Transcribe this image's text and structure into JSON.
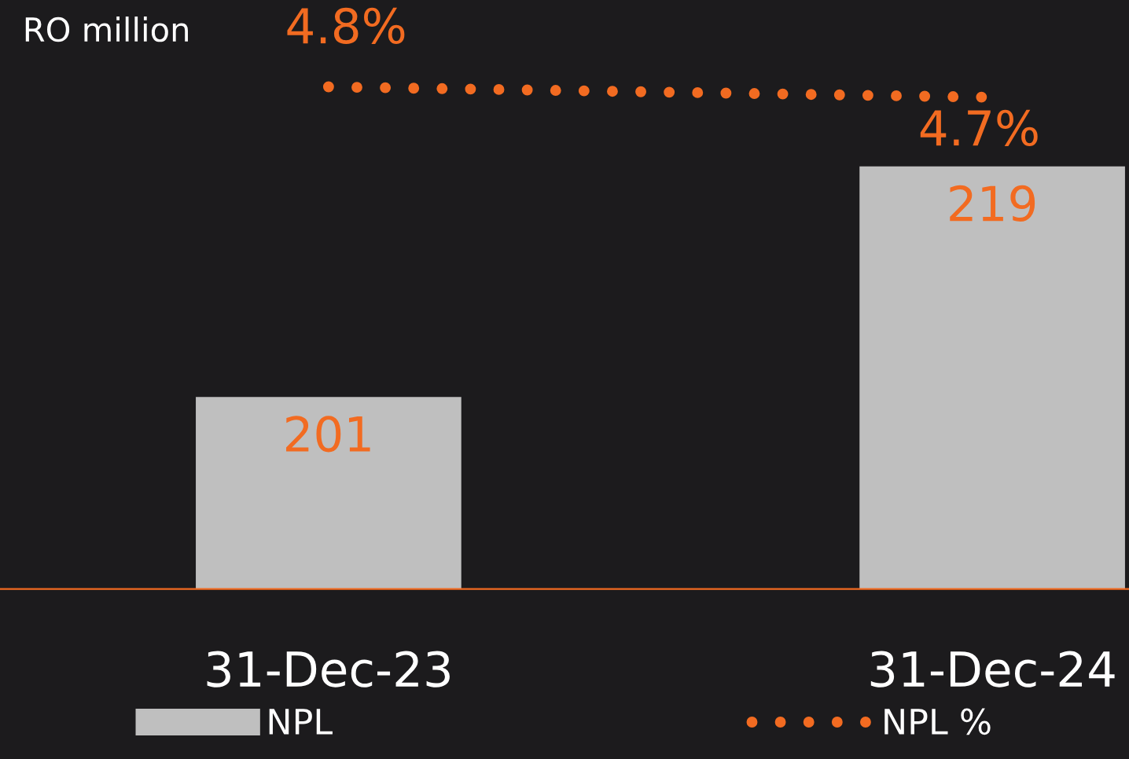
{
  "chart_data": {
    "type": "bar",
    "ylabel": "RO million",
    "categories": [
      "31-Dec-23",
      "31-Dec-24"
    ],
    "ylim": [
      186,
      232
    ],
    "y2lim": [
      0,
      5.63
    ],
    "tick_labels": "x",
    "data_labels": true,
    "legend": "bottom",
    "grid": false,
    "series": [
      {
        "name": "NPL",
        "color": "#bfbfbf",
        "values": [
          201,
          219
        ]
      },
      {
        "name": "NPL %",
        "type": "line",
        "axis": "y2",
        "color": "#f26b21",
        "values": [
          4.8,
          4.7
        ],
        "value_labels": [
          "4.8%",
          "4.7%"
        ],
        "marker": "none",
        "line_style": "dotted"
      }
    ]
  }
}
